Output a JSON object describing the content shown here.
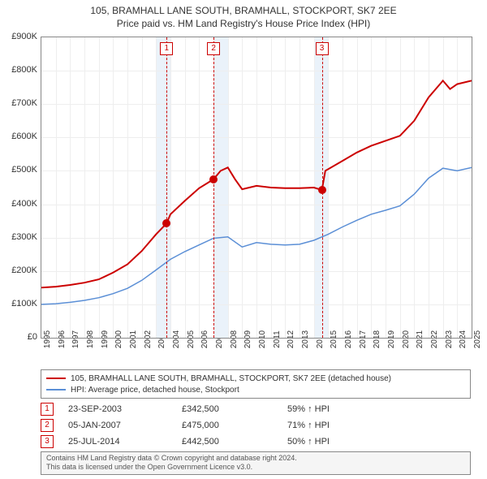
{
  "title_line1": "105, BRAMHALL LANE SOUTH, BRAMHALL, STOCKPORT, SK7 2EE",
  "title_line2": "Price paid vs. HM Land Registry's House Price Index (HPI)",
  "chart": {
    "type": "line",
    "x_start_year": 1995,
    "x_end_year": 2025,
    "ylim": [
      0,
      900000
    ],
    "ytick_step": 100000,
    "ytick_prefix": "£",
    "ytick_suffix": "K",
    "background_color": "#ffffff",
    "grid_color": "#eeeeee",
    "border_color": "#888888",
    "shaded_years": [
      2003,
      2007,
      2014
    ],
    "shaded_color": "#eaf2fa",
    "marker_line_color": "#cc0000",
    "marker_box_border": "#cc0000",
    "sale_markers": [
      {
        "num": "1",
        "year": 2003.73,
        "price": 342500
      },
      {
        "num": "2",
        "year": 2007.01,
        "price": 475000
      },
      {
        "num": "3",
        "year": 2014.56,
        "price": 442500
      }
    ],
    "series": [
      {
        "name": "105, BRAMHALL LANE SOUTH, BRAMHALL, STOCKPORT, SK7 2EE (detached house)",
        "color": "#cc0000",
        "line_width": 2,
        "points": [
          [
            1995,
            150000
          ],
          [
            1996,
            153000
          ],
          [
            1997,
            158000
          ],
          [
            1998,
            165000
          ],
          [
            1999,
            175000
          ],
          [
            2000,
            195000
          ],
          [
            2001,
            220000
          ],
          [
            2002,
            260000
          ],
          [
            2003,
            310000
          ],
          [
            2003.73,
            342500
          ],
          [
            2004,
            370000
          ],
          [
            2005,
            410000
          ],
          [
            2006,
            448000
          ],
          [
            2007.01,
            475000
          ],
          [
            2007.5,
            500000
          ],
          [
            2008,
            510000
          ],
          [
            2008.5,
            475000
          ],
          [
            2009,
            445000
          ],
          [
            2010,
            455000
          ],
          [
            2011,
            450000
          ],
          [
            2012,
            448000
          ],
          [
            2013,
            448000
          ],
          [
            2014,
            450000
          ],
          [
            2014.56,
            442500
          ],
          [
            2014.8,
            500000
          ],
          [
            2015,
            505000
          ],
          [
            2016,
            530000
          ],
          [
            2017,
            555000
          ],
          [
            2018,
            575000
          ],
          [
            2019,
            590000
          ],
          [
            2020,
            605000
          ],
          [
            2021,
            650000
          ],
          [
            2022,
            720000
          ],
          [
            2023,
            770000
          ],
          [
            2023.5,
            745000
          ],
          [
            2024,
            760000
          ],
          [
            2025,
            770000
          ]
        ]
      },
      {
        "name": "HPI: Average price, detached house, Stockport",
        "color": "#5b8fd6",
        "line_width": 1.5,
        "points": [
          [
            1995,
            100000
          ],
          [
            1996,
            102000
          ],
          [
            1997,
            106000
          ],
          [
            1998,
            112000
          ],
          [
            1999,
            120000
          ],
          [
            2000,
            132000
          ],
          [
            2001,
            148000
          ],
          [
            2002,
            172000
          ],
          [
            2003,
            203000
          ],
          [
            2004,
            235000
          ],
          [
            2005,
            258000
          ],
          [
            2006,
            278000
          ],
          [
            2007,
            298000
          ],
          [
            2008,
            302000
          ],
          [
            2009,
            272000
          ],
          [
            2010,
            285000
          ],
          [
            2011,
            280000
          ],
          [
            2012,
            278000
          ],
          [
            2013,
            280000
          ],
          [
            2014,
            292000
          ],
          [
            2015,
            310000
          ],
          [
            2016,
            332000
          ],
          [
            2017,
            352000
          ],
          [
            2018,
            370000
          ],
          [
            2019,
            382000
          ],
          [
            2020,
            395000
          ],
          [
            2021,
            430000
          ],
          [
            2022,
            478000
          ],
          [
            2023,
            508000
          ],
          [
            2024,
            500000
          ],
          [
            2025,
            510000
          ]
        ]
      }
    ]
  },
  "legend": {
    "items": [
      {
        "color": "#cc0000",
        "label": "105, BRAMHALL LANE SOUTH, BRAMHALL, STOCKPORT, SK7 2EE (detached house)"
      },
      {
        "color": "#5b8fd6",
        "label": "HPI: Average price, detached house, Stockport"
      }
    ]
  },
  "sales": [
    {
      "num": "1",
      "date": "23-SEP-2003",
      "price": "£342,500",
      "hpi": "59% ↑ HPI"
    },
    {
      "num": "2",
      "date": "05-JAN-2007",
      "price": "£475,000",
      "hpi": "71% ↑ HPI"
    },
    {
      "num": "3",
      "date": "25-JUL-2014",
      "price": "£442,500",
      "hpi": "50% ↑ HPI"
    }
  ],
  "footer_line1": "Contains HM Land Registry data © Crown copyright and database right 2024.",
  "footer_line2": "This data is licensed under the Open Government Licence v3.0."
}
